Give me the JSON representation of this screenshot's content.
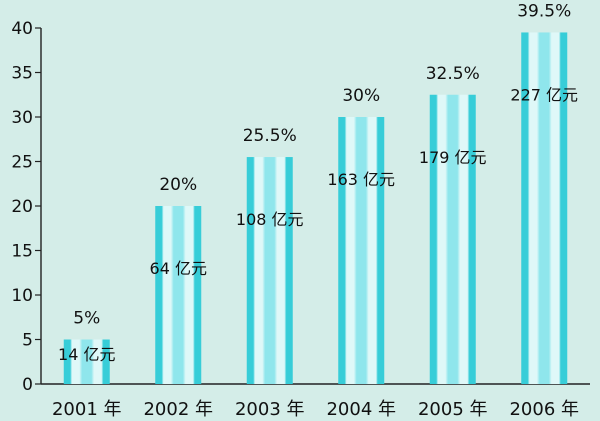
{
  "chart_data": {
    "type": "bar",
    "categories": [
      "2001 年",
      "2002 年",
      "2003 年",
      "2004 年",
      "2005 年",
      "2006 年"
    ],
    "values": [
      5,
      20,
      25.5,
      30,
      32.5,
      39.5
    ],
    "top_labels": [
      "5%",
      "20%",
      "25.5%",
      "30%",
      "32.5%",
      "39.5%"
    ],
    "inner_labels": [
      "14 亿元",
      "64 亿元",
      "108 亿元",
      "163 亿元",
      "179 亿元",
      "227 亿元"
    ],
    "ylim": [
      0,
      40
    ],
    "yticks": [
      0,
      5,
      10,
      15,
      20,
      25,
      30,
      35,
      40
    ],
    "grid": false,
    "colors": {
      "background": "#d4ede8",
      "bar_light": "#dff8f8",
      "bar_mid": "#8fe6ec",
      "bar_dark": "#37cdd8",
      "axis": "#222222",
      "text": "#111111"
    }
  }
}
